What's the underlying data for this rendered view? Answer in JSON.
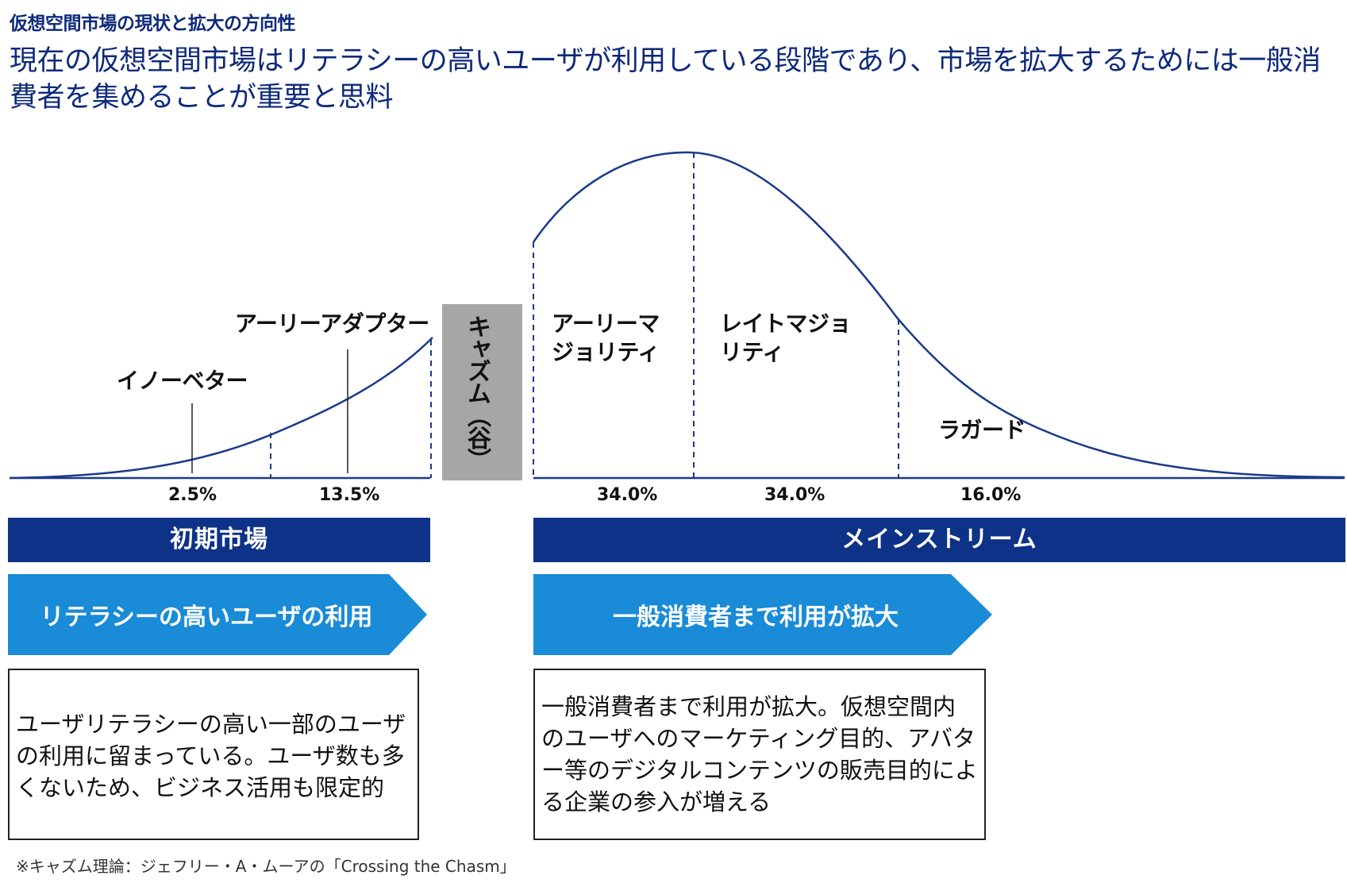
{
  "kicker": "仮想空間市場の現状と拡大の方向性",
  "headline": "現在の仮想空間市場はリテラシーの高いユーザが利用している段階であり、市場を拡大するためには一般消費者を集めることが重要と思料",
  "segments": {
    "innovator": "イノーベター",
    "early_adopter": "アーリーアダプター",
    "chasm": "キャズム（谷）",
    "early_majority": "アーリーマジョリティ",
    "late_majority": "レイトマジョリティ",
    "laggard": "ラガード"
  },
  "percentages": {
    "innovator": "2.5%",
    "early_adopter": "13.5%",
    "early_majority": "34.0%",
    "late_majority": "34.0%",
    "laggard": "16.0%"
  },
  "bands": {
    "early_market": "初期市場",
    "mainstream": "メインストリーム"
  },
  "arrows": {
    "left": "リテラシーの高いユーザの利用",
    "right": "一般消費者まで利用が拡大"
  },
  "descriptions": {
    "left": "ユーザリテラシーの高い一部のユーザの利用に留まっている。ユーザ数も多くないため、ビジネス活用も限定的",
    "right": "一般消費者まで利用が拡大。仮想空間内のユーザへのマーケティング目的、アバター等のデジタルコンテンツの販売目的による企業の参入が増える"
  },
  "footnote": "※キャズム理論：ジェフリー・A・ムーアの「Crossing the Chasm」",
  "colors": {
    "navy": "#0d3287",
    "blue": "#1a8bd7",
    "curve": "#1b3a8a",
    "chasm_gray": "#a6a6a6"
  }
}
